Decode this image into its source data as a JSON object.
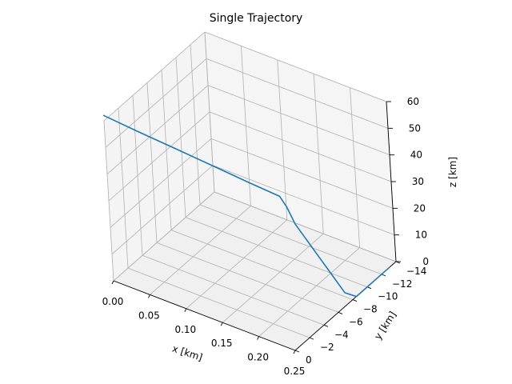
{
  "chart_data": {
    "type": "line3d",
    "title": "Single Trajectory",
    "xlabel": "x [km]",
    "ylabel": "y [km]",
    "zlabel": "z [km]",
    "xlim": [
      0.0,
      0.25
    ],
    "ylim": [
      -14,
      0
    ],
    "zlim": [
      0,
      60
    ],
    "xticks": [
      "0.00",
      "0.05",
      "0.10",
      "0.15",
      "0.20",
      "0.25"
    ],
    "yticks": [
      "0",
      "−2",
      "−4",
      "−6",
      "−8",
      "−10",
      "−12",
      "−14"
    ],
    "zticks": [
      "0",
      "10",
      "20",
      "30",
      "40",
      "50",
      "60"
    ],
    "grid": true,
    "series": [
      {
        "color": "#1f77b4",
        "x": [
          0.0,
          0.02,
          0.05,
          0.1,
          0.15,
          0.2,
          0.24,
          0.245,
          0.25,
          0.25,
          0.25,
          0.25,
          0.25,
          0.25,
          0.25,
          0.25,
          0.25
        ],
        "y": [
          0.0,
          0.0,
          0.0,
          0.0,
          0.0,
          0.0,
          -0.1,
          -0.5,
          -1.0,
          -2.5,
          -4.0,
          -5.5,
          -7.0,
          -8.5,
          -10.0,
          -11.5,
          -13.0
        ],
        "z": [
          62.0,
          61.5,
          60.8,
          59.8,
          58.7,
          57.6,
          56.5,
          52.0,
          45.0,
          35.0,
          25.0,
          15.0,
          5.0,
          0.0,
          0.0,
          0.0,
          0.0
        ]
      }
    ]
  }
}
